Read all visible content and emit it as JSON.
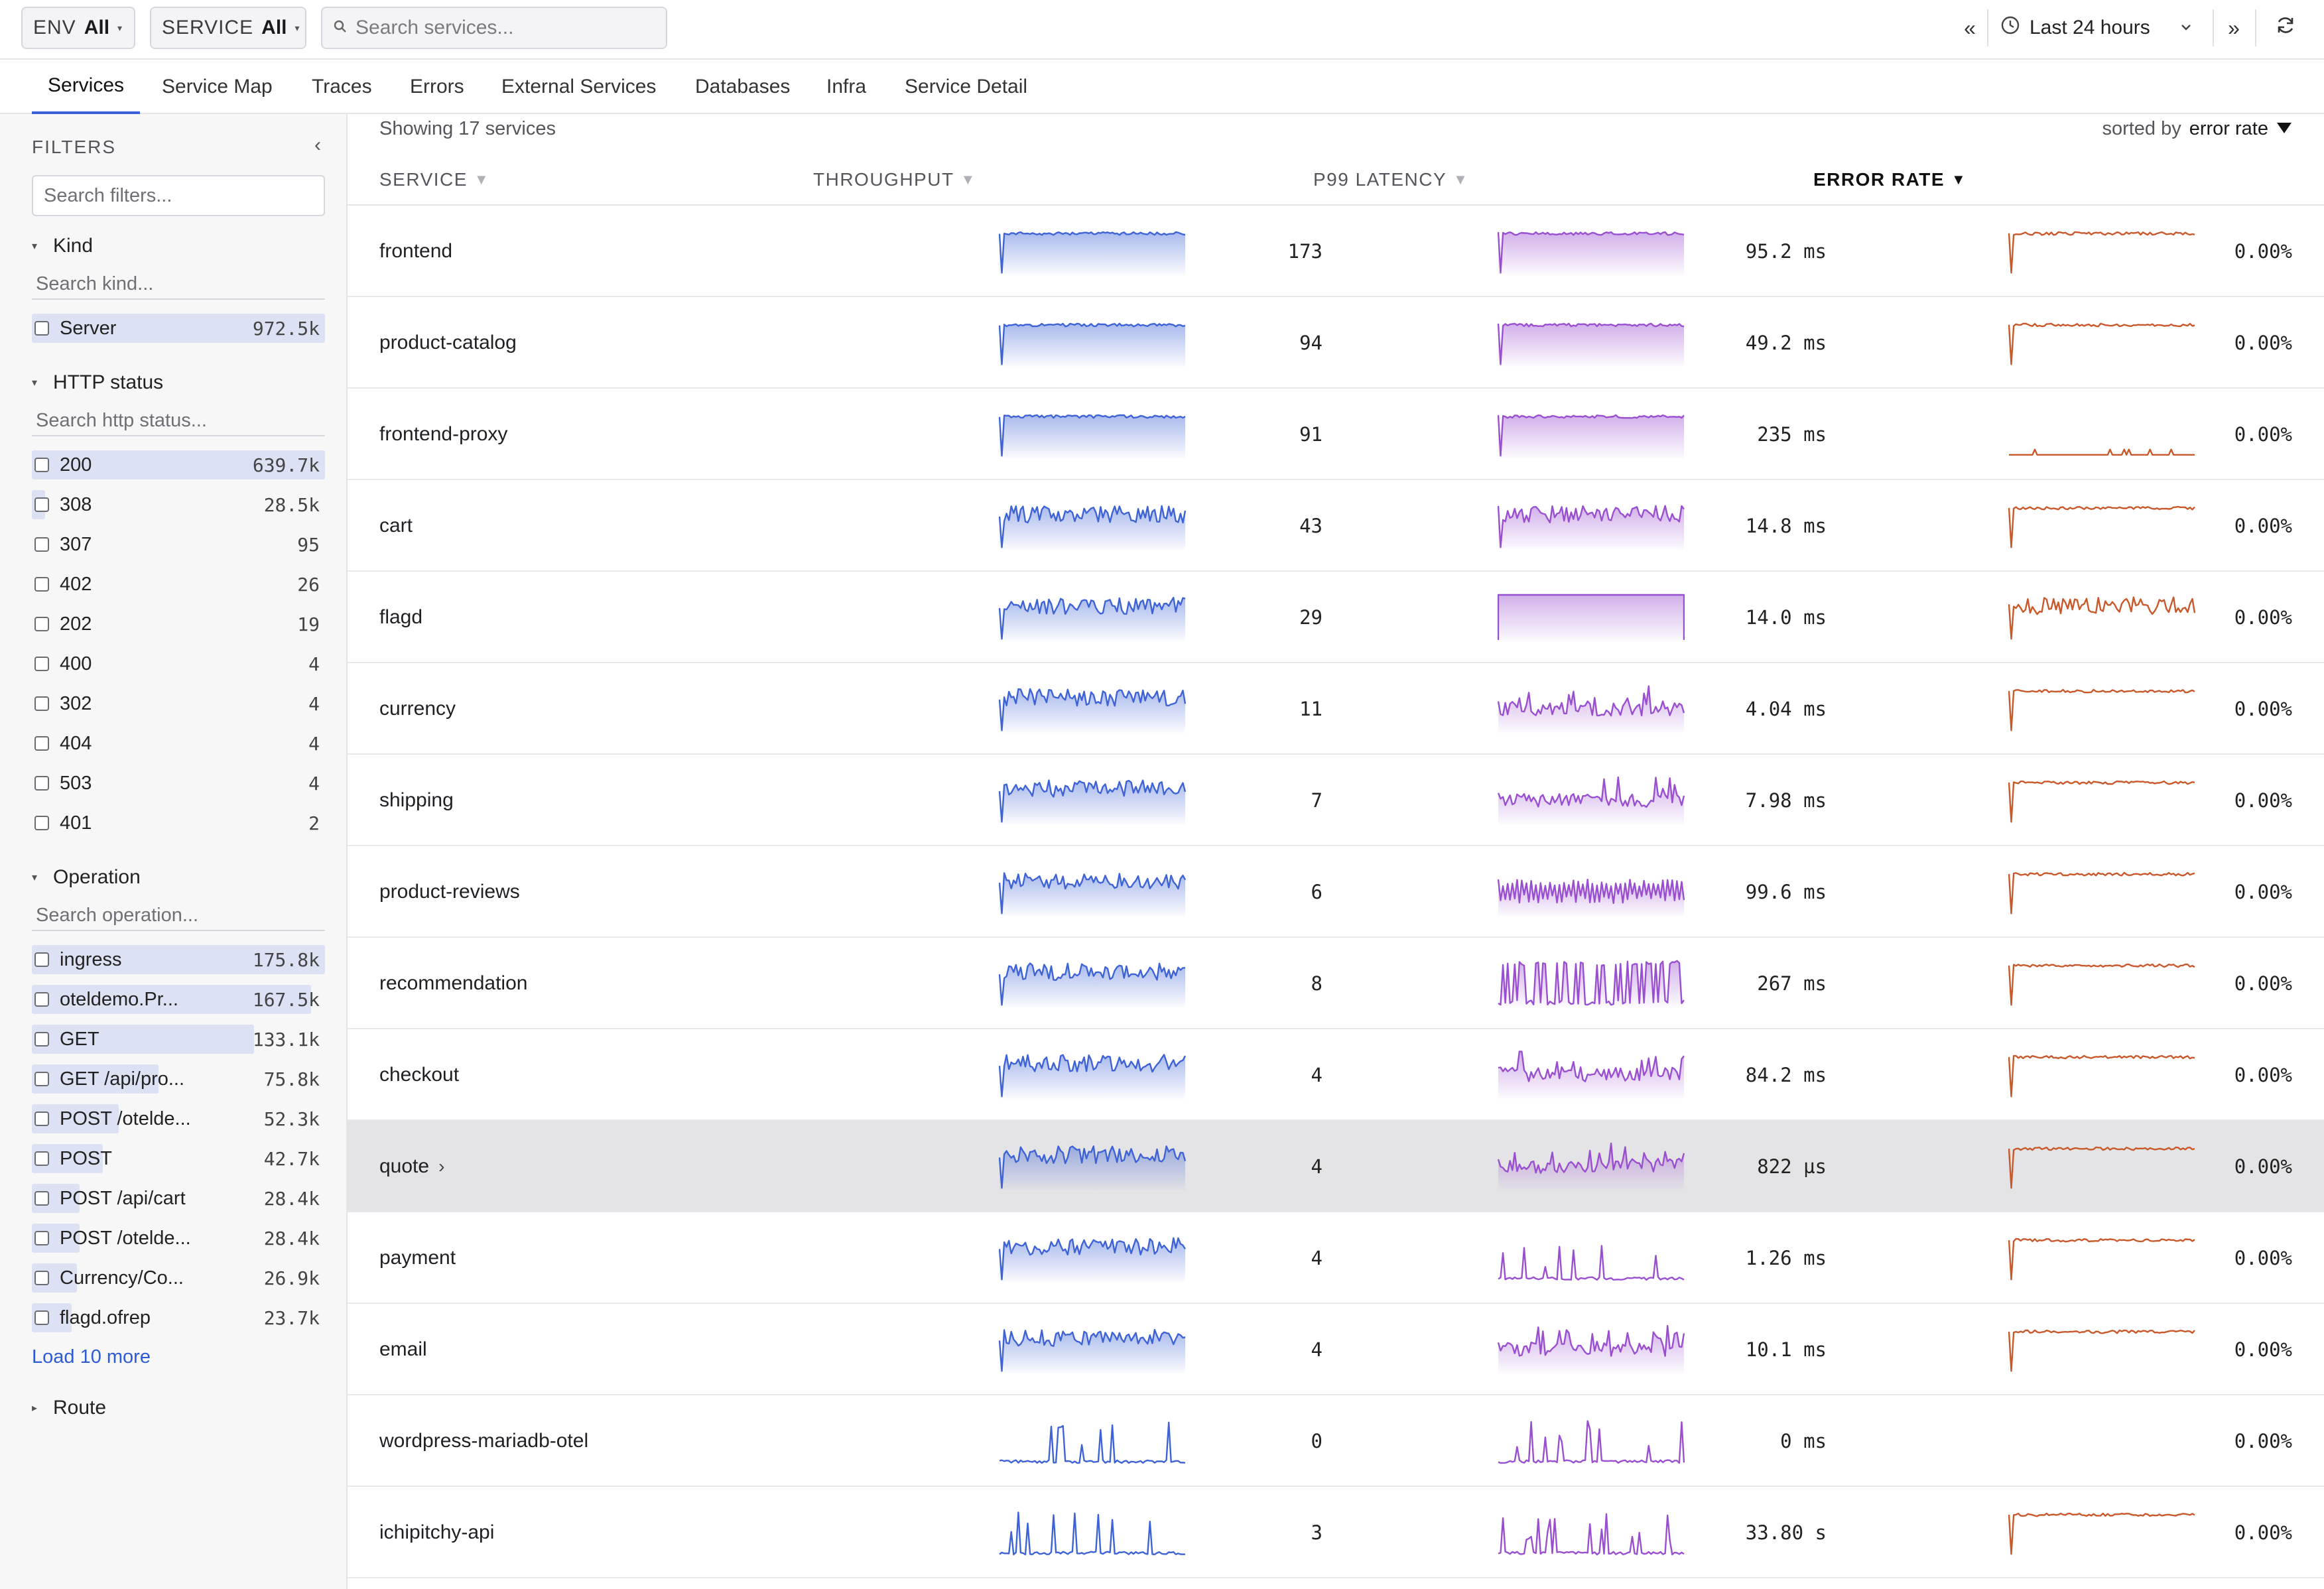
{
  "topbar": {
    "env_key": "ENV",
    "env_value": "All",
    "service_key": "SERVICE",
    "service_value": "All",
    "search_placeholder": "Search services...",
    "time_range": "Last 24 hours"
  },
  "tabs": [
    {
      "label": "Services",
      "active": true
    },
    {
      "label": "Service Map"
    },
    {
      "label": "Traces"
    },
    {
      "label": "Errors"
    },
    {
      "label": "External Services"
    },
    {
      "label": "Databases"
    },
    {
      "label": "Infra"
    },
    {
      "label": "Service Detail"
    }
  ],
  "sidebar": {
    "title": "FILTERS",
    "search_placeholder": "Search filters...",
    "kind": {
      "title": "Kind",
      "search_placeholder": "Search kind...",
      "items": [
        {
          "label": "Server",
          "count": "972.5k",
          "fraction": 1.0
        }
      ]
    },
    "http_status": {
      "title": "HTTP status",
      "search_placeholder": "Search http status...",
      "items": [
        {
          "label": "200",
          "count": "639.7k",
          "fraction": 1.0
        },
        {
          "label": "308",
          "count": "28.5k",
          "fraction": 0.045
        },
        {
          "label": "307",
          "count": "95",
          "fraction": 0
        },
        {
          "label": "402",
          "count": "26",
          "fraction": 0
        },
        {
          "label": "202",
          "count": "19",
          "fraction": 0
        },
        {
          "label": "400",
          "count": "4",
          "fraction": 0
        },
        {
          "label": "302",
          "count": "4",
          "fraction": 0
        },
        {
          "label": "404",
          "count": "4",
          "fraction": 0
        },
        {
          "label": "503",
          "count": "4",
          "fraction": 0
        },
        {
          "label": "401",
          "count": "2",
          "fraction": 0
        }
      ]
    },
    "operation": {
      "title": "Operation",
      "search_placeholder": "Search operation...",
      "items": [
        {
          "label": "ingress",
          "count": "175.8k",
          "fraction": 1.0
        },
        {
          "label": "oteldemo.Pr...",
          "count": "167.5k",
          "fraction": 0.953
        },
        {
          "label": "GET",
          "count": "133.1k",
          "fraction": 0.757
        },
        {
          "label": "GET /api/pro...",
          "count": "75.8k",
          "fraction": 0.431
        },
        {
          "label": "POST /otelde...",
          "count": "52.3k",
          "fraction": 0.297
        },
        {
          "label": "POST",
          "count": "42.7k",
          "fraction": 0.243
        },
        {
          "label": "POST /api/cart",
          "count": "28.4k",
          "fraction": 0.162
        },
        {
          "label": "POST /otelde...",
          "count": "28.4k",
          "fraction": 0.162
        },
        {
          "label": "Currency/Co...",
          "count": "26.9k",
          "fraction": 0.153
        },
        {
          "label": "flagd.ofrep",
          "count": "23.7k",
          "fraction": 0.135
        }
      ],
      "load_more": "Load 10 more"
    },
    "route": {
      "title": "Route"
    }
  },
  "main": {
    "showing": "Showing 17 services",
    "sorted_by_label": "sorted by",
    "sorted_by_value": "error rate",
    "columns": {
      "service": "SERVICE",
      "throughput": "THROUGHPUT",
      "p99_latency": "P99 LATENCY",
      "error_rate": "ERROR RATE"
    },
    "rows": [
      {
        "service": "frontend",
        "throughput": "173",
        "latency": "95.2 ms",
        "error_rate": "0.00%",
        "tp_style": "flat",
        "lat_style": "flat",
        "err_style": "flat"
      },
      {
        "service": "product-catalog",
        "throughput": "94",
        "latency": "49.2 ms",
        "error_rate": "0.00%",
        "tp_style": "flat",
        "lat_style": "flat",
        "err_style": "flat"
      },
      {
        "service": "frontend-proxy",
        "throughput": "91",
        "latency": "235 ms",
        "error_rate": "0.00%",
        "tp_style": "flat",
        "lat_style": "flat",
        "err_style": "blips"
      },
      {
        "service": "cart",
        "throughput": "43",
        "latency": "14.8 ms",
        "error_rate": "0.00%",
        "tp_style": "noisy",
        "lat_style": "noisy",
        "err_style": "flat"
      },
      {
        "service": "flagd",
        "throughput": "29",
        "latency": "14.0 ms",
        "error_rate": "0.00%",
        "tp_style": "noisy",
        "lat_style": "box",
        "err_style": "noisy"
      },
      {
        "service": "currency",
        "throughput": "11",
        "latency": "4.04 ms",
        "error_rate": "0.00%",
        "tp_style": "noisy",
        "lat_style": "spiky",
        "err_style": "flat"
      },
      {
        "service": "shipping",
        "throughput": "7",
        "latency": "7.98 ms",
        "error_rate": "0.00%",
        "tp_style": "noisy",
        "lat_style": "spiky",
        "err_style": "flat"
      },
      {
        "service": "product-reviews",
        "throughput": "6",
        "latency": "99.6 ms",
        "error_rate": "0.00%",
        "tp_style": "noisy",
        "lat_style": "comb",
        "err_style": "flat"
      },
      {
        "service": "recommendation",
        "throughput": "8",
        "latency": "267 ms",
        "error_rate": "0.00%",
        "tp_style": "noisy",
        "lat_style": "dense",
        "err_style": "flat"
      },
      {
        "service": "checkout",
        "throughput": "4",
        "latency": "84.2 ms",
        "error_rate": "0.00%",
        "tp_style": "noisy",
        "lat_style": "spiky",
        "err_style": "flat"
      },
      {
        "service": "quote",
        "throughput": "4",
        "latency": "822 µs",
        "error_rate": "0.00%",
        "tp_style": "noisy",
        "lat_style": "spiky",
        "err_style": "flat",
        "highlighted": true,
        "chevron": "›"
      },
      {
        "service": "payment",
        "throughput": "4",
        "latency": "1.26 ms",
        "error_rate": "0.00%",
        "tp_style": "noisy",
        "lat_style": "sparse",
        "err_style": "flat"
      },
      {
        "service": "email",
        "throughput": "4",
        "latency": "10.1 ms",
        "error_rate": "0.00%",
        "tp_style": "noisy",
        "lat_style": "spiky",
        "err_style": "flat"
      },
      {
        "service": "wordpress-mariadb-otel",
        "throughput": "0",
        "latency": "0 ms",
        "error_rate": "0.00%",
        "tp_style": "sparse",
        "lat_style": "sparse",
        "err_style": "none"
      },
      {
        "service": "ichipitchy-api",
        "throughput": "3",
        "latency": "33.80 s",
        "error_rate": "0.00%",
        "tp_style": "sparse",
        "lat_style": "sparse",
        "err_style": "flat"
      }
    ]
  },
  "colors": {
    "throughput": "#3e63d6",
    "latency": "#9a4fd0",
    "error": "#c9582a",
    "accent": "#3a5fd9"
  }
}
